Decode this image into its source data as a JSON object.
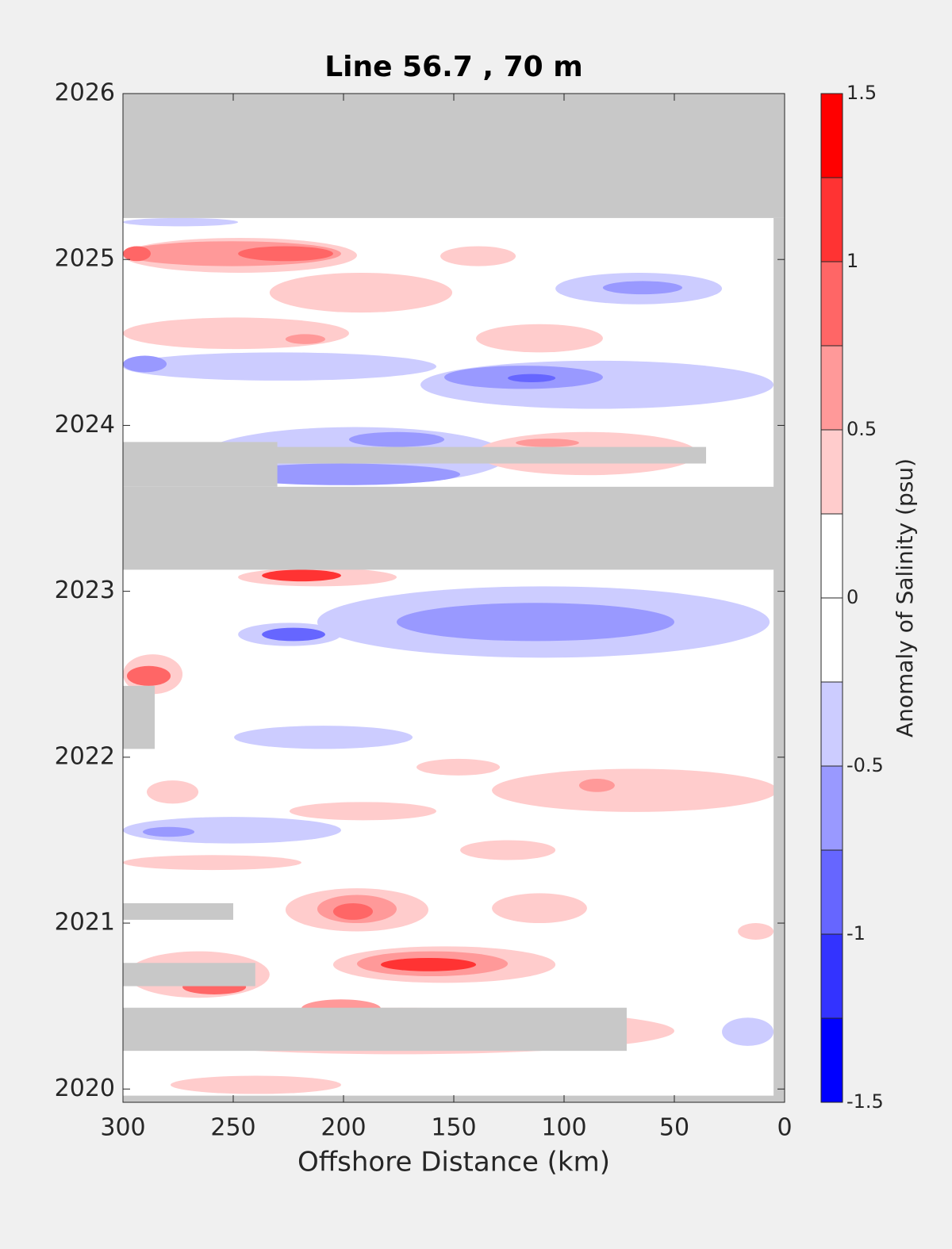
{
  "chart_data": {
    "type": "contour",
    "title": "Line 56.7 , 70 m",
    "xlabel": "Offshore Distance (km)",
    "colorbar_label": "Anomaly of Salinity (psu)",
    "xlim": [
      300,
      0
    ],
    "xticks": [
      300,
      250,
      200,
      150,
      100,
      50,
      0
    ],
    "ylim": [
      2019.92,
      2026
    ],
    "yticks": [
      2020,
      2021,
      2022,
      2023,
      2024,
      2025,
      2026
    ],
    "clim": [
      -1.5,
      1.5
    ],
    "cticks": [
      -1.5,
      -1,
      -0.5,
      0,
      0.5,
      1,
      1.5
    ],
    "levels": [
      -1.5,
      -1.25,
      -1,
      -0.75,
      -0.5,
      -0.25,
      0,
      0.25,
      0.5,
      0.75,
      1,
      1.25,
      1.5
    ],
    "colors": [
      "#0000ff",
      "#3333ff",
      "#6666ff",
      "#9999ff",
      "#ccccff",
      "#ffffff",
      "#ffffff",
      "#ffcccc",
      "#ff9999",
      "#ff6666",
      "#ff3333",
      "#ff0000"
    ],
    "missing_color": "#c8c8c8",
    "patches": [
      {
        "x": [
          300,
          193.9
        ],
        "y": [
          2024.92,
          2025.13
        ],
        "value": 0.35
      },
      {
        "x": [
          300,
          201.1
        ],
        "y": [
          2024.96,
          2025.11
        ],
        "value": 0.6
      },
      {
        "x": [
          247.8,
          204.7
        ],
        "y": [
          2024.99,
          2025.08
        ],
        "value": 0.9
      },
      {
        "x": [
          300,
          287.4
        ],
        "y": [
          2024.99,
          2025.08
        ],
        "value": 0.9
      },
      {
        "x": [
          156.1,
          121.9
        ],
        "y": [
          2024.96,
          2025.08
        ],
        "value": 0.35
      },
      {
        "x": [
          233.5,
          150.7
        ],
        "y": [
          2024.68,
          2024.92
        ],
        "value": 0.35
      },
      {
        "x": [
          300,
          197.5
        ],
        "y": [
          2024.46,
          2024.65
        ],
        "value": 0.35
      },
      {
        "x": [
          226.3,
          208.3
        ],
        "y": [
          2024.49,
          2024.55
        ],
        "value": 0.55
      },
      {
        "x": [
          139.9,
          82.4
        ],
        "y": [
          2024.44,
          2024.61
        ],
        "value": 0.35
      },
      {
        "x": [
          300,
          247.8
        ],
        "y": [
          2025.2,
          2025.25
        ],
        "value": -0.4
      },
      {
        "x": [
          103.9,
          28.4
        ],
        "y": [
          2024.73,
          2024.92
        ],
        "value": -0.35
      },
      {
        "x": [
          82.4,
          46.4
        ],
        "y": [
          2024.79,
          2024.87
        ],
        "value": -0.6
      },
      {
        "x": [
          300,
          157.9
        ],
        "y": [
          2024.27,
          2024.44
        ],
        "value": -0.35
      },
      {
        "x": [
          300,
          280.2
        ],
        "y": [
          2024.32,
          2024.42
        ],
        "value": -0.6
      },
      {
        "x": [
          165.1,
          5
        ],
        "y": [
          2024.1,
          2024.39
        ],
        "value": -0.4
      },
      {
        "x": [
          154.3,
          82.4
        ],
        "y": [
          2024.22,
          2024.36
        ],
        "value": -0.6
      },
      {
        "x": [
          125.5,
          103.9
        ],
        "y": [
          2024.26,
          2024.31
        ],
        "value": -0.85
      },
      {
        "x": [
          264,
          125.5
        ],
        "y": [
          2023.64,
          2023.99
        ],
        "value": -0.4
      },
      {
        "x": [
          255,
          147.1
        ],
        "y": [
          2023.64,
          2023.77
        ],
        "value": -0.6
      },
      {
        "x": [
          264,
          247.8
        ],
        "y": [
          2023.67,
          2023.73
        ],
        "value": -1.1
      },
      {
        "x": [
          197.5,
          154.3
        ],
        "y": [
          2023.87,
          2023.96
        ],
        "value": -0.7
      },
      {
        "x": [
          139.9,
          39.2
        ],
        "y": [
          2023.7,
          2023.96
        ],
        "value": 0.35
      },
      {
        "x": [
          121.9,
          93.2
        ],
        "y": [
          2023.87,
          2023.92
        ],
        "value": 0.55
      },
      {
        "x": [
          247.8,
          175.9
        ],
        "y": [
          2023.03,
          2023.14
        ],
        "value": 0.35
      },
      {
        "x": [
          237,
          201.1
        ],
        "y": [
          2023.06,
          2023.13
        ],
        "value": 1.1
      },
      {
        "x": [
          211.9,
          6.8
        ],
        "y": [
          2022.6,
          2023.03
        ],
        "value": -0.35
      },
      {
        "x": [
          175.9,
          50
        ],
        "y": [
          2022.7,
          2022.93
        ],
        "value": -0.6
      },
      {
        "x": [
          247.8,
          201.1
        ],
        "y": [
          2022.67,
          2022.81
        ],
        "value": -0.4
      },
      {
        "x": [
          237,
          208.3
        ],
        "y": [
          2022.7,
          2022.78
        ],
        "value": -0.85
      },
      {
        "x": [
          300,
          273
        ],
        "y": [
          2022.38,
          2022.62
        ],
        "value": 0.4
      },
      {
        "x": [
          298.2,
          278.4
        ],
        "y": [
          2022.43,
          2022.55
        ],
        "value": 0.9
      },
      {
        "x": [
          249.6,
          168.7
        ],
        "y": [
          2022.05,
          2022.19
        ],
        "value": -0.35
      },
      {
        "x": [
          166.9,
          129.1
        ],
        "y": [
          2021.89,
          2021.99
        ],
        "value": 0.35
      },
      {
        "x": [
          132.7,
          3.2
        ],
        "y": [
          2021.67,
          2021.93
        ],
        "value": 0.35
      },
      {
        "x": [
          93.2,
          77
        ],
        "y": [
          2021.79,
          2021.87
        ],
        "value": 0.6
      },
      {
        "x": [
          289.2,
          265.8
        ],
        "y": [
          2021.72,
          2021.86
        ],
        "value": 0.35
      },
      {
        "x": [
          224.5,
          157.9
        ],
        "y": [
          2021.62,
          2021.73
        ],
        "value": 0.35
      },
      {
        "x": [
          300,
          201.1
        ],
        "y": [
          2021.48,
          2021.64
        ],
        "value": -0.35
      },
      {
        "x": [
          291,
          267.6
        ],
        "y": [
          2021.52,
          2021.58
        ],
        "value": -0.6
      },
      {
        "x": [
          147.1,
          103.9
        ],
        "y": [
          2021.38,
          2021.5
        ],
        "value": 0.35
      },
      {
        "x": [
          300,
          219.1
        ],
        "y": [
          2021.32,
          2021.41
        ],
        "value": 0.35
      },
      {
        "x": [
          226.3,
          161.5
        ],
        "y": [
          2020.95,
          2021.21
        ],
        "value": 0.35
      },
      {
        "x": [
          211.9,
          175.9
        ],
        "y": [
          2021,
          2021.17
        ],
        "value": 0.6
      },
      {
        "x": [
          204.7,
          186.7
        ],
        "y": [
          2021.02,
          2021.12
        ],
        "value": 0.85
      },
      {
        "x": [
          132.7,
          89.6
        ],
        "y": [
          2021,
          2021.18
        ],
        "value": 0.35
      },
      {
        "x": [
          21.2,
          5
        ],
        "y": [
          2020.9,
          2021
        ],
        "value": 0.35
      },
      {
        "x": [
          298.2,
          233.5
        ],
        "y": [
          2020.55,
          2020.83
        ],
        "value": 0.4
      },
      {
        "x": [
          273,
          244.2
        ],
        "y": [
          2020.57,
          2020.66
        ],
        "value": 0.9
      },
      {
        "x": [
          204.7,
          103.9
        ],
        "y": [
          2020.64,
          2020.86
        ],
        "value": 0.4
      },
      {
        "x": [
          193.9,
          125.5
        ],
        "y": [
          2020.68,
          2020.83
        ],
        "value": 0.6
      },
      {
        "x": [
          183.1,
          139.9
        ],
        "y": [
          2020.71,
          2020.79
        ],
        "value": 1.1
      },
      {
        "x": [
          300,
          50
        ],
        "y": [
          2020.21,
          2020.49
        ],
        "value": 0.35
      },
      {
        "x": [
          219.1,
          183.1
        ],
        "y": [
          2020.43,
          2020.54
        ],
        "value": 0.6
      },
      {
        "x": [
          28.4,
          5
        ],
        "y": [
          2020.26,
          2020.43
        ],
        "value": -0.35
      },
      {
        "x": [
          278.4,
          201.1
        ],
        "y": [
          2019.97,
          2020.08
        ],
        "value": 0.35
      }
    ],
    "missing": [
      {
        "x": [
          300,
          0
        ],
        "y": [
          2025.25,
          2026
        ]
      },
      {
        "x": [
          5,
          0
        ],
        "y": [
          2019.92,
          2025.25
        ]
      },
      {
        "x": [
          300,
          0
        ],
        "y": [
          2019.92,
          2019.96
        ]
      },
      {
        "x": [
          300,
          0
        ],
        "y": [
          2023.13,
          2023.63
        ]
      },
      {
        "x": [
          300,
          230
        ],
        "y": [
          2023.63,
          2023.9
        ]
      },
      {
        "x": [
          233.5,
          35.6
        ],
        "y": [
          2023.77,
          2023.87
        ]
      },
      {
        "x": [
          300,
          285.6
        ],
        "y": [
          2022.05,
          2022.43
        ]
      },
      {
        "x": [
          300,
          250
        ],
        "y": [
          2021.02,
          2021.12
        ]
      },
      {
        "x": [
          300,
          240
        ],
        "y": [
          2020.62,
          2020.76
        ]
      },
      {
        "x": [
          300,
          71.6
        ],
        "y": [
          2020.23,
          2020.49
        ]
      }
    ]
  }
}
